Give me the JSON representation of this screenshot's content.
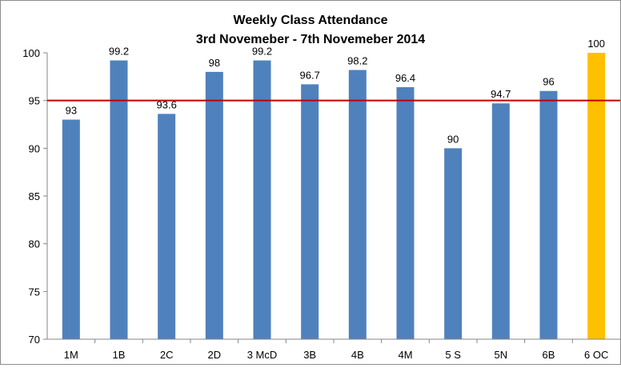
{
  "chart_data": {
    "type": "bar",
    "title": "Weekly Class Attendance",
    "subtitle": "3rd Novemeber - 7th Novemeber 2014",
    "xlabel": "",
    "ylabel": "",
    "categories": [
      "1M",
      "1B",
      "2C",
      "2D",
      "3 McD",
      "3B",
      "4B",
      "4M",
      "5 S",
      "5N",
      "6B",
      "6 OC"
    ],
    "values": [
      93,
      99.2,
      93.6,
      98,
      99.2,
      96.7,
      98.2,
      96.4,
      90,
      94.7,
      96,
      100
    ],
    "value_labels": [
      "93",
      "99.2",
      "93.6",
      "98",
      "99.2",
      "96.7",
      "98.2",
      "96.4",
      "90",
      "94.7",
      "96",
      "100"
    ],
    "ylim": [
      70,
      100
    ],
    "yticks": [
      70,
      75,
      80,
      85,
      90,
      95,
      100
    ],
    "target_line": 95,
    "grid": false,
    "legend": "none",
    "colors": {
      "bar": "#4f81bd",
      "highlight_bar": "#ffc000",
      "target_line": "#c00000",
      "axis": "#868686"
    },
    "highlight_index": 11
  }
}
